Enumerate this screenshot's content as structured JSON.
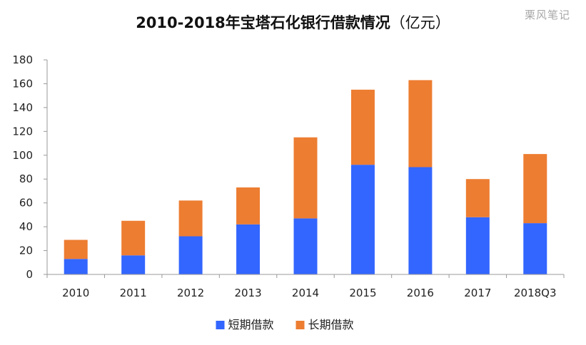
{
  "watermark": "栗风笔记",
  "chart_data": {
    "type": "bar",
    "stacked": true,
    "title": "2010-2018年宝塔石化银行借款情况",
    "title_unit": "（亿元）",
    "xlabel": "",
    "ylabel": "",
    "categories": [
      "2010",
      "2011",
      "2012",
      "2013",
      "2014",
      "2015",
      "2016",
      "2017",
      "2018Q3"
    ],
    "series": [
      {
        "name": "短期借款",
        "color": "#3366ff",
        "values": [
          13,
          16,
          32,
          42,
          47,
          92,
          90,
          48,
          43
        ]
      },
      {
        "name": "长期借款",
        "color": "#ed7d31",
        "values": [
          16,
          29,
          30,
          31,
          68,
          63,
          73,
          32,
          58
        ]
      }
    ],
    "ylim": [
      0,
      180
    ],
    "yticks": [
      0,
      20,
      40,
      60,
      80,
      100,
      120,
      140,
      160,
      180
    ],
    "grid": false,
    "legend_position": "bottom-center"
  }
}
